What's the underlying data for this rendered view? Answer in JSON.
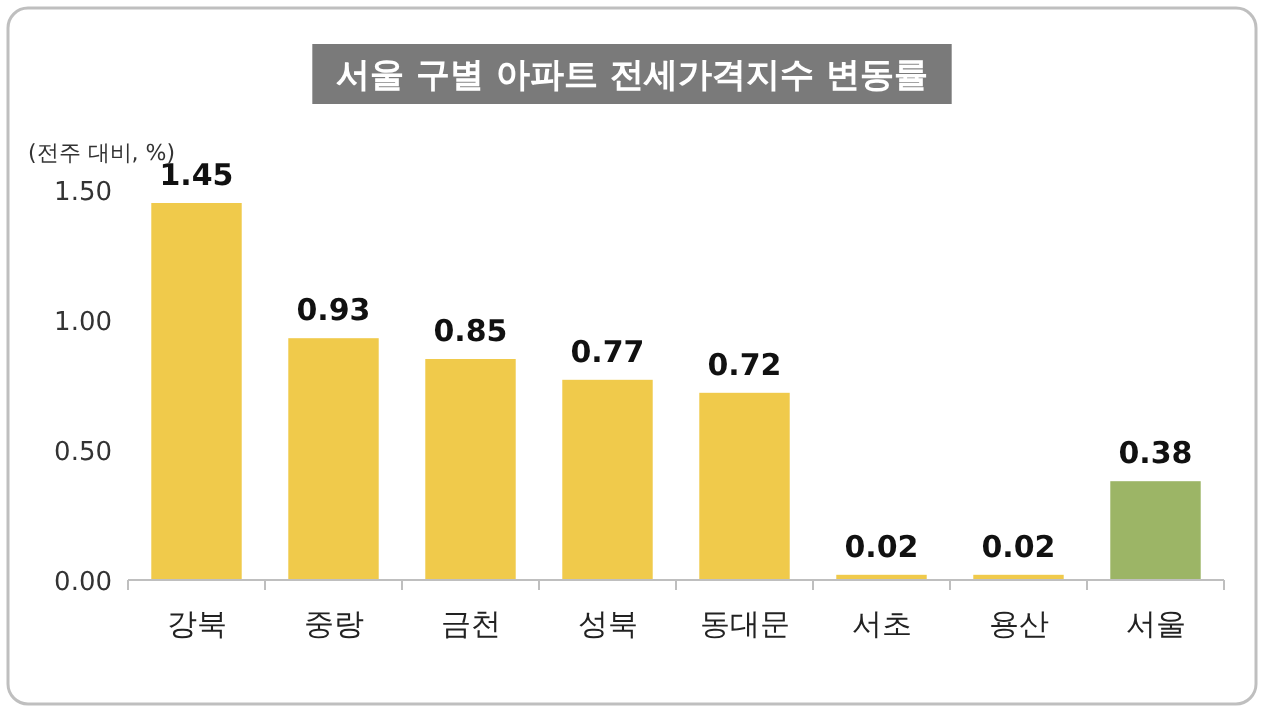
{
  "chart_data": {
    "type": "bar",
    "title": "서울 구별 아파트 전세가격지수 변동률",
    "ylabel": "(전주 대비, %)",
    "categories": [
      "강북",
      "중랑",
      "금천",
      "성북",
      "동대문",
      "서초",
      "용산",
      "서울"
    ],
    "values": [
      1.45,
      0.93,
      0.85,
      0.77,
      0.72,
      0.02,
      0.02,
      0.38
    ],
    "colors": [
      "#f0ca4b",
      "#f0ca4b",
      "#f0ca4b",
      "#f0ca4b",
      "#f0ca4b",
      "#f0ca4b",
      "#f0ca4b",
      "#9cb566"
    ],
    "ylim": [
      0,
      1.5
    ],
    "yticks": [
      {
        "value": 0,
        "label": "0.00"
      },
      {
        "value": 0.5,
        "label": "0.50"
      },
      {
        "value": 1,
        "label": "1.00"
      },
      {
        "value": 1.5,
        "label": "1.50"
      }
    ],
    "data_labels": true
  }
}
